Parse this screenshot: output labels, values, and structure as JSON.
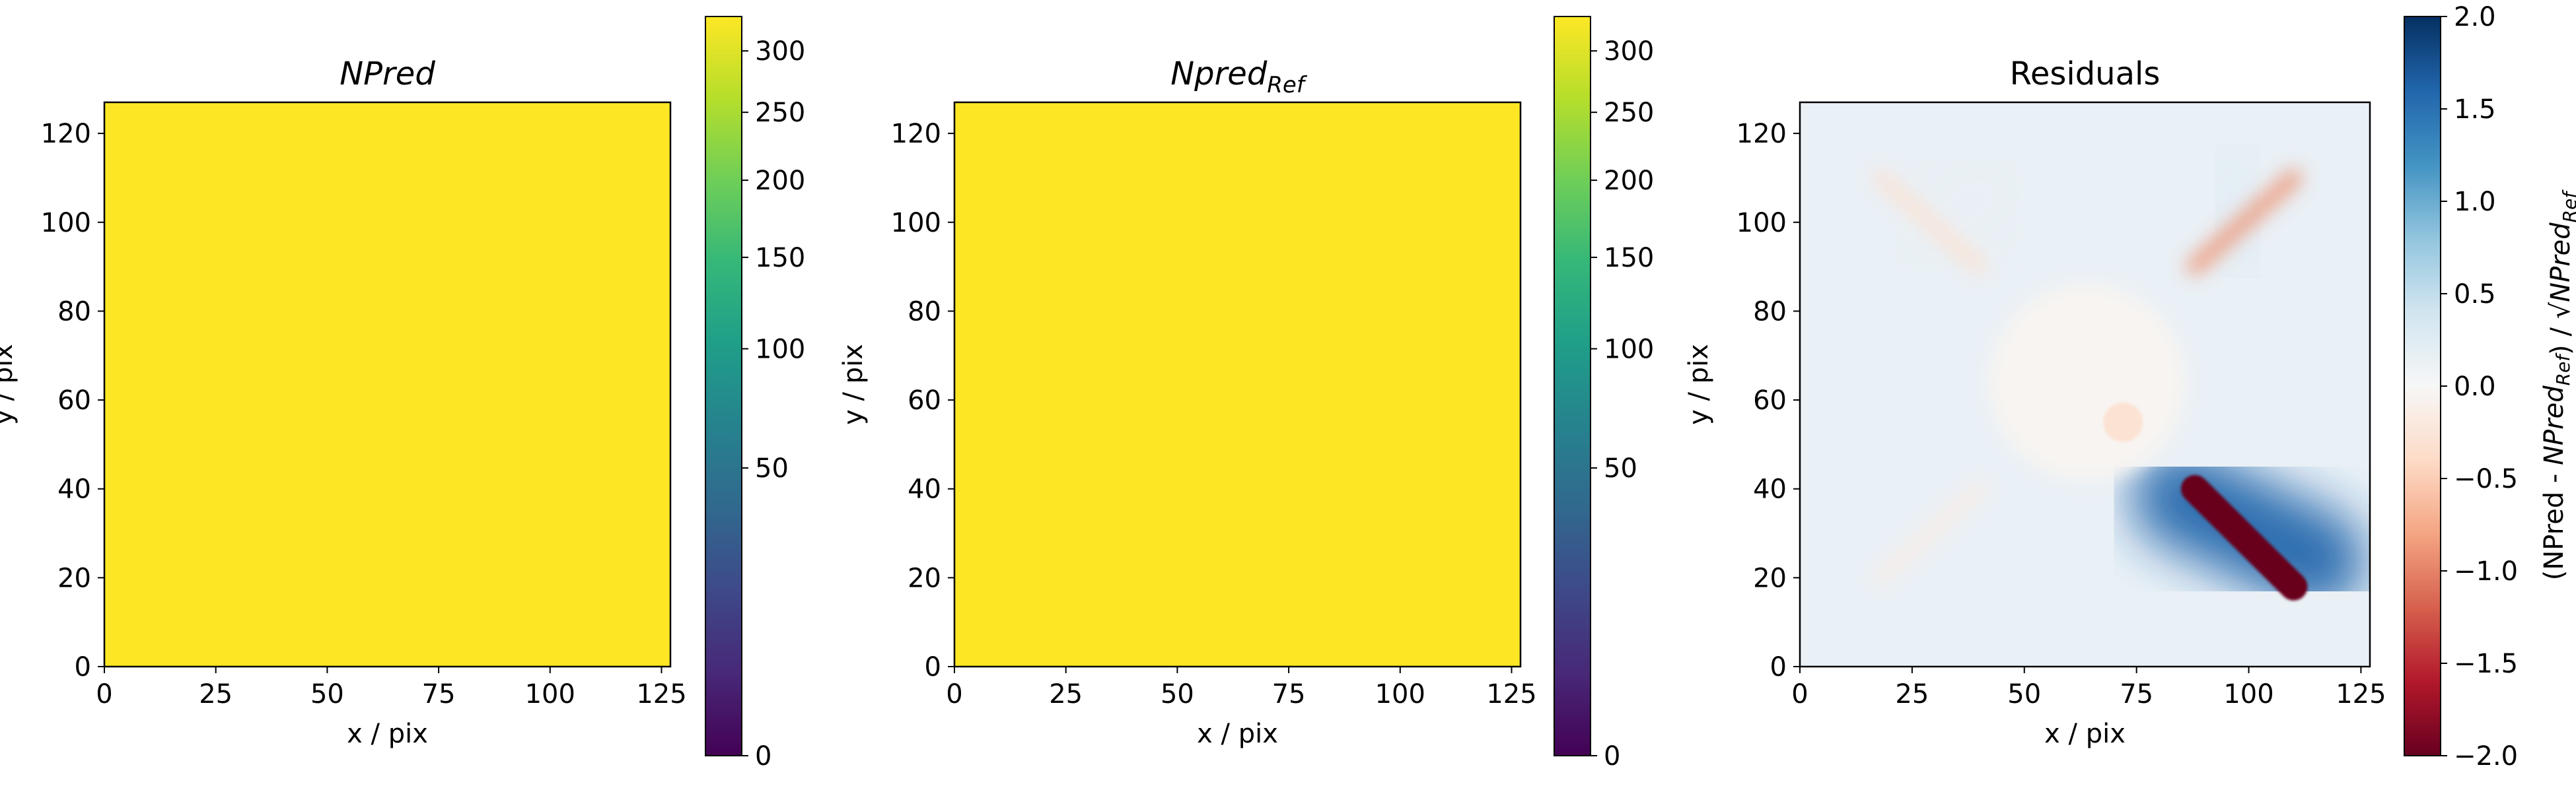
{
  "chart_data": [
    {
      "type": "heatmap",
      "title": "NPred",
      "title_style": "italic",
      "xlabel": "x / pix",
      "ylabel": "y / pix",
      "xlim": [
        0,
        127
      ],
      "ylim": [
        0,
        127
      ],
      "xticks": [
        0,
        25,
        50,
        75,
        100,
        125
      ],
      "yticks": [
        0,
        20,
        40,
        60,
        80,
        100,
        120
      ],
      "fill_value": 325,
      "fill_color": "#fde725",
      "colorbar": {
        "colormap": "viridis",
        "scale": "sqrt",
        "range": [
          0,
          330
        ],
        "ticks": [
          0,
          50,
          100,
          150,
          200,
          250,
          300
        ],
        "label": ""
      }
    },
    {
      "type": "heatmap",
      "title": "Npred",
      "title_sub": "Ref",
      "title_style": "italic",
      "xlabel": "x / pix",
      "ylabel": "y / pix",
      "xlim": [
        0,
        127
      ],
      "ylim": [
        0,
        127
      ],
      "xticks": [
        0,
        25,
        50,
        75,
        100,
        125
      ],
      "yticks": [
        0,
        20,
        40,
        60,
        80,
        100,
        120
      ],
      "fill_value": 325,
      "fill_color": "#fde725",
      "colorbar": {
        "colormap": "viridis",
        "scale": "sqrt",
        "range": [
          0,
          330
        ],
        "ticks": [
          0,
          50,
          100,
          150,
          200,
          250,
          300
        ],
        "label": ""
      }
    },
    {
      "type": "heatmap",
      "title": "Residuals",
      "xlabel": "x / pix",
      "ylabel": "y / pix",
      "xlim": [
        0,
        127
      ],
      "ylim": [
        0,
        127
      ],
      "xticks": [
        0,
        25,
        50,
        75,
        100,
        125
      ],
      "yticks": [
        0,
        20,
        40,
        60,
        80,
        100,
        120
      ],
      "colorbar": {
        "colormap": "RdBu",
        "scale": "linear",
        "range": [
          -2.0,
          2.0
        ],
        "ticks": [
          -2.0,
          -1.5,
          -1.0,
          -0.5,
          0.0,
          0.5,
          1.0,
          1.5,
          2.0
        ],
        "tick_labels": [
          "−2.0",
          "−1.5",
          "−1.0",
          "−0.5",
          "0.0",
          "0.5",
          "1.0",
          "1.5",
          "2.0"
        ],
        "label": "(NPred - NPred_Ref) / √NPred_Ref"
      },
      "features": [
        {
          "kind": "streak",
          "from": [
            18,
            110
          ],
          "to": [
            40,
            90
          ],
          "value": -0.3
        },
        {
          "kind": "streak",
          "from": [
            88,
            90
          ],
          "to": [
            110,
            110
          ],
          "value": -0.9
        },
        {
          "kind": "streak",
          "from": [
            18,
            20
          ],
          "to": [
            40,
            40
          ],
          "value": -0.15
        },
        {
          "kind": "streak",
          "from": [
            88,
            40
          ],
          "to": [
            110,
            18
          ],
          "value": -2.0
        },
        {
          "kind": "halo",
          "from": [
            85,
            38
          ],
          "to": [
            115,
            24
          ],
          "value": 1.6
        },
        {
          "kind": "halo",
          "from": [
            95,
            110
          ],
          "to": [
            100,
            95
          ],
          "value": 0.2
        },
        {
          "kind": "halo",
          "from": [
            28,
            96
          ],
          "to": [
            42,
            108
          ],
          "value": 0.15
        },
        {
          "kind": "disk",
          "center": [
            64,
            64
          ],
          "radius": 22,
          "value": -0.05
        },
        {
          "kind": "blob",
          "center": [
            72,
            55
          ],
          "radius": 2,
          "value": -0.3
        }
      ]
    }
  ]
}
